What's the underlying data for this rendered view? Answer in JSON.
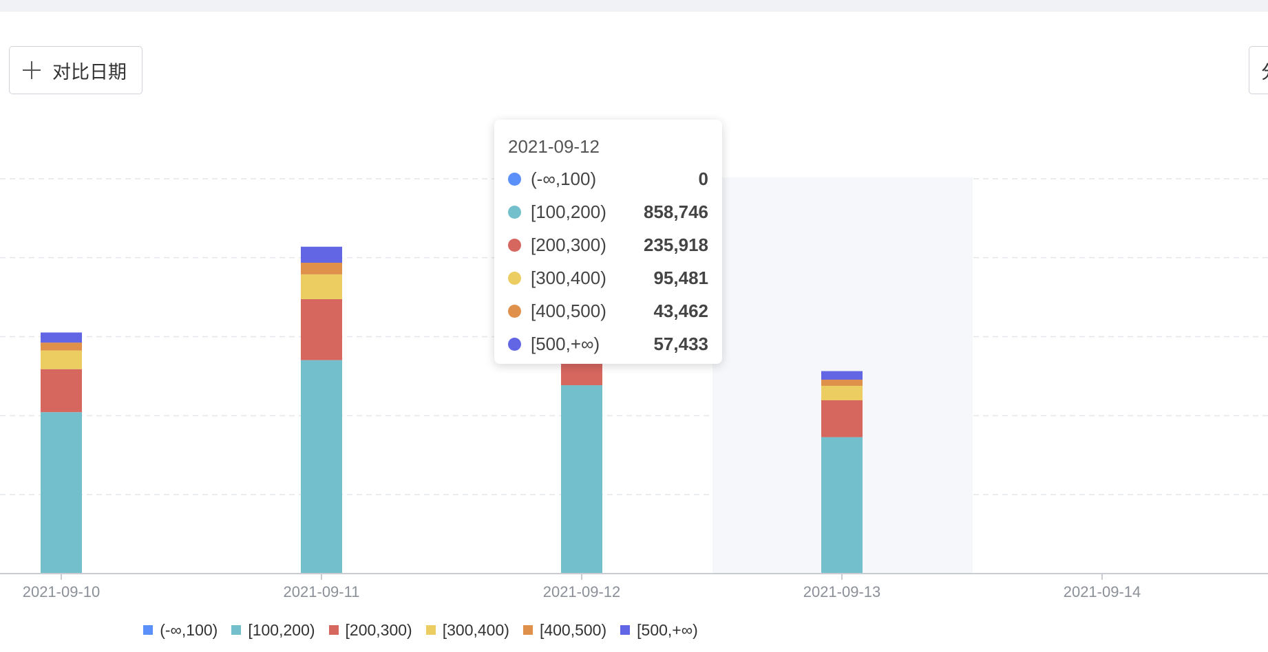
{
  "toolbar": {
    "compare_label": "对比日期",
    "right_label": "分"
  },
  "chart_data": {
    "type": "bar",
    "stacked": true,
    "categories": [
      "2021-09-10",
      "2021-09-11",
      "2021-09-12",
      "2021-09-13",
      "2021-09-14"
    ],
    "series": [
      {
        "name": "(-∞,100)",
        "color": "#5b8ff9",
        "values": [
          0,
          0,
          0,
          0,
          0
        ]
      },
      {
        "name": "[100,200)",
        "color": "#73c0cc",
        "values": [
          736000,
          973000,
          858746,
          622000,
          0
        ]
      },
      {
        "name": "[200,300)",
        "color": "#d5675f",
        "values": [
          196000,
          278000,
          235918,
          168000,
          0
        ]
      },
      {
        "name": "[300,400)",
        "color": "#eccd62",
        "values": [
          85000,
          113000,
          95481,
          66000,
          0
        ]
      },
      {
        "name": "[400,500)",
        "color": "#df904b",
        "values": [
          36000,
          53000,
          43462,
          28000,
          0
        ]
      },
      {
        "name": "[500,+∞)",
        "color": "#6266e5",
        "values": [
          46000,
          73000,
          57433,
          39000,
          0
        ]
      }
    ],
    "grid": true,
    "legend_position": "bottom-center",
    "highlighted_category": "2021-09-12"
  },
  "tooltip": {
    "title": "2021-09-12",
    "rows": [
      {
        "name": "(-∞,100)",
        "value": "0",
        "color": "#5b8ff9"
      },
      {
        "name": "[100,200)",
        "value": "858,746",
        "color": "#73c0cc"
      },
      {
        "name": "[200,300)",
        "value": "235,918",
        "color": "#d5675f"
      },
      {
        "name": "[300,400)",
        "value": "95,481",
        "color": "#eccd62"
      },
      {
        "name": "[400,500)",
        "value": "43,462",
        "color": "#df904b"
      },
      {
        "name": "[500,+∞)",
        "value": "57,433",
        "color": "#6266e5"
      }
    ]
  }
}
